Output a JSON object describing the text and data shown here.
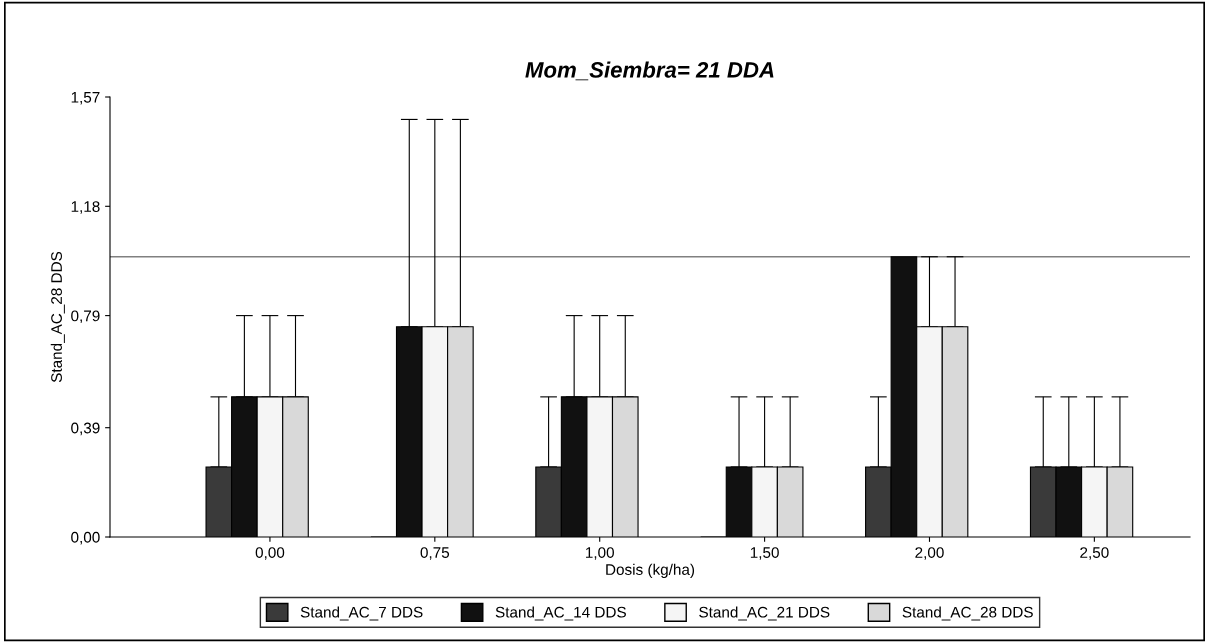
{
  "chart_data": {
    "type": "bar",
    "title": "Mom_Siembra= 21 DDA",
    "xlabel": "Dosis (kg/ha)",
    "ylabel": "Stand_AC_28 DDS",
    "categories": [
      "0,00",
      "0,75",
      "1,00",
      "1,50",
      "2,00",
      "2,50"
    ],
    "series": [
      {
        "name": "Stand_AC_7 DDS",
        "color": "#3a3a3a",
        "values": [
          0.25,
          0,
          0.25,
          0,
          0.25,
          0.25
        ],
        "errors": [
          [
            0.25,
            0.5
          ],
          null,
          [
            0.25,
            0.5
          ],
          null,
          [
            0.25,
            0.5
          ],
          [
            0.25,
            0.5
          ]
        ]
      },
      {
        "name": "Stand_AC_14 DDS",
        "color": "#111111",
        "values": [
          0.5,
          0.75,
          0.5,
          0.25,
          1.0,
          0.25
        ],
        "errors": [
          [
            0.5,
            0.79
          ],
          [
            0.75,
            1.49
          ],
          [
            0.5,
            0.79
          ],
          [
            0.25,
            0.5
          ],
          null,
          [
            0.25,
            0.5
          ]
        ]
      },
      {
        "name": "Stand_AC_21 DDS",
        "color": "#f5f5f5",
        "values": [
          0.5,
          0.75,
          0.5,
          0.25,
          0.75,
          0.25
        ],
        "errors": [
          [
            0.5,
            0.79
          ],
          [
            0.75,
            1.49
          ],
          [
            0.5,
            0.79
          ],
          [
            0.25,
            0.5
          ],
          [
            0.75,
            1.0
          ],
          [
            0.25,
            0.5
          ]
        ]
      },
      {
        "name": "Stand_AC_28 DDS",
        "color": "#d9d9d9",
        "values": [
          0.5,
          0.75,
          0.5,
          0.25,
          0.75,
          0.25
        ],
        "errors": [
          [
            0.5,
            0.79
          ],
          [
            0.75,
            1.49
          ],
          [
            0.5,
            0.79
          ],
          [
            0.25,
            0.5
          ],
          [
            0.75,
            1.0
          ],
          [
            0.25,
            0.5
          ]
        ]
      }
    ],
    "ylim": [
      0,
      1.57
    ],
    "yticks": [
      {
        "value": 0,
        "label": "0,00"
      },
      {
        "value": 0.39,
        "label": "0,39"
      },
      {
        "value": 0.79,
        "label": "0,79"
      },
      {
        "value": 1.18,
        "label": "1,18"
      },
      {
        "value": 1.57,
        "label": "1,57"
      }
    ],
    "ref_lines": [
      {
        "axis": "y",
        "value": 1.0,
        "color": "#808080"
      }
    ],
    "grid": false,
    "legend": "bottom"
  }
}
